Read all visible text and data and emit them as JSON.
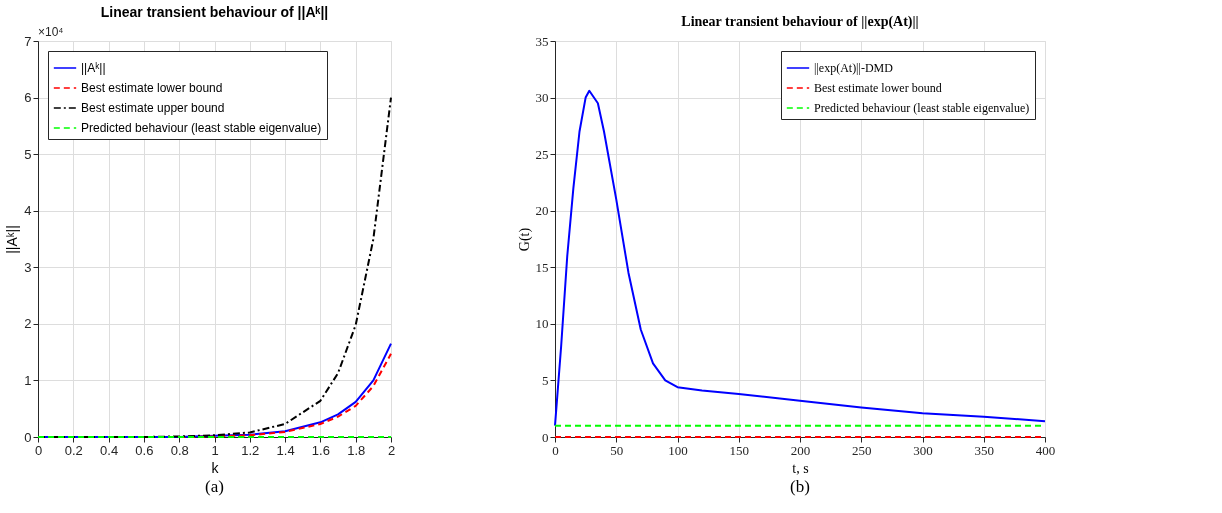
{
  "chart_data": [
    {
      "type": "line",
      "title": "Linear transient behaviour of ||Aᵏ||",
      "xlabel": "k",
      "ylabel": "||Aᵏ||",
      "xlim": [
        0,
        2
      ],
      "xticks": [
        0,
        0.2,
        0.4,
        0.6,
        0.8,
        1,
        1.2,
        1.4,
        1.6,
        1.8,
        2
      ],
      "ylim": [
        0,
        7
      ],
      "yticks": [
        0,
        1,
        2,
        3,
        4,
        5,
        6,
        7
      ],
      "x": [
        0,
        0.2,
        0.4,
        0.6,
        0.8,
        1,
        1.2,
        1.4,
        1.6,
        1.7,
        1.8,
        1.9,
        2
      ],
      "grid": true,
      "legend": "top left",
      "series": [
        {
          "name": "||Aᵏ||",
          "color": "#0000ff",
          "line_style": "solid",
          "values": [
            0,
            0,
            0,
            0,
            0,
            0.02,
            0.04,
            0.1,
            0.26,
            0.4,
            0.62,
            1.0,
            1.65
          ]
        },
        {
          "name": "Best estimate lower bound",
          "color": "#ff0000",
          "line_style": "dashed",
          "values": [
            null,
            null,
            null,
            null,
            0,
            0.01,
            0.03,
            0.09,
            0.23,
            0.36,
            0.55,
            0.9,
            1.47
          ]
        },
        {
          "name": "Best estimate upper bound",
          "color": "#000000",
          "line_style": "dashdot",
          "values": [
            0,
            0,
            0,
            0,
            0.01,
            0.03,
            0.08,
            0.23,
            0.64,
            1.13,
            1.98,
            3.5,
            6.0
          ]
        },
        {
          "name": "Predicted behaviour (least stable eigenvalue)",
          "color": "#00ff00",
          "line_style": "dashed",
          "values": [
            0,
            0,
            0,
            0,
            0,
            0,
            0,
            0,
            0,
            0,
            0,
            0,
            0
          ]
        }
      ],
      "annotations": [
        "×10⁴",
        "(a)"
      ]
    },
    {
      "type": "line",
      "title": "Linear transient behaviour of ||exp(At)||",
      "xlabel": "t, s",
      "ylabel": "G(t)",
      "xlim": [
        0,
        400
      ],
      "xticks": [
        0,
        50,
        100,
        150,
        200,
        250,
        300,
        350,
        400
      ],
      "ylim": [
        0,
        35
      ],
      "yticks": [
        0,
        5,
        10,
        15,
        20,
        25,
        30,
        35
      ],
      "grid": true,
      "legend": "top right",
      "series": [
        {
          "name": "||exp(At)||-DMD",
          "color": "#0000ff",
          "line_style": "solid",
          "x": [
            0,
            5,
            10,
            15,
            20,
            25,
            28,
            35,
            40,
            50,
            60,
            70,
            80,
            90,
            100,
            120,
            150,
            200,
            250,
            300,
            350,
            400
          ],
          "values": [
            1,
            8,
            16,
            22,
            27,
            30,
            30.6,
            29.5,
            27,
            21,
            14.5,
            9.5,
            6.5,
            5,
            4.4,
            4.1,
            3.8,
            3.2,
            2.6,
            2.1,
            1.8,
            1.4
          ]
        },
        {
          "name": "Best estimate lower bound",
          "color": "#ff0000",
          "line_style": "dashed",
          "x": [
            0,
            400
          ],
          "values": [
            0,
            0
          ]
        },
        {
          "name": "Predicted behaviour (least stable eigenvalue)",
          "color": "#00ff00",
          "line_style": "dashed",
          "x": [
            0,
            400
          ],
          "values": [
            1,
            1
          ]
        }
      ],
      "annotations": [
        "(b)"
      ]
    }
  ]
}
